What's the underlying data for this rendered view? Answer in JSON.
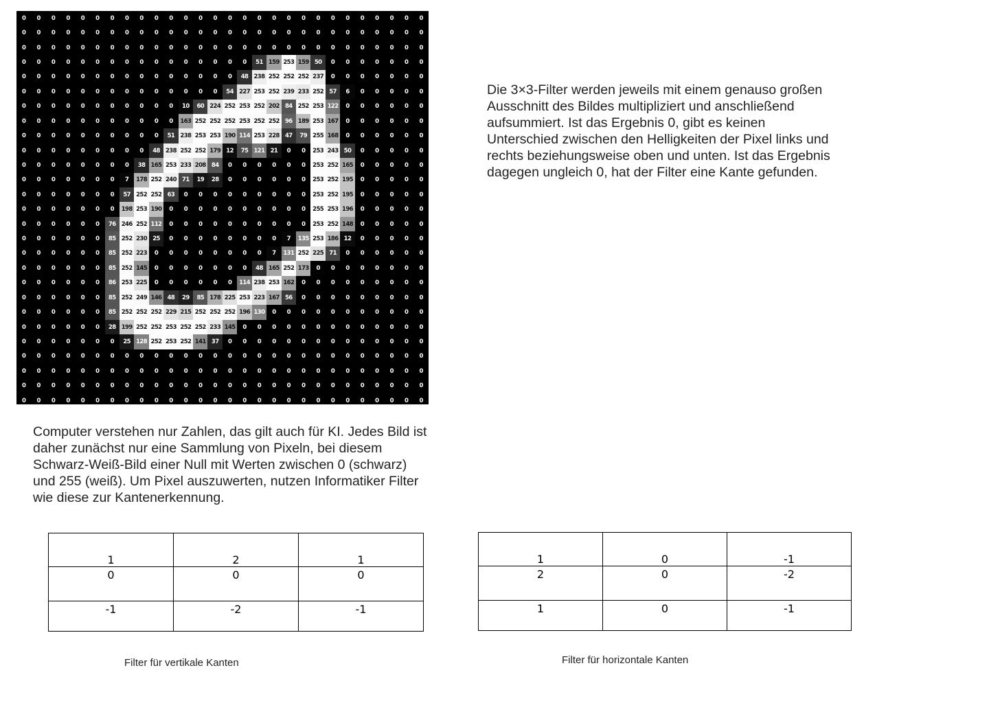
{
  "pixel_image": {
    "rows": [
      [
        0,
        0,
        0,
        0,
        0,
        0,
        0,
        0,
        0,
        0,
        0,
        0,
        0,
        0,
        0,
        0,
        0,
        0,
        0,
        0,
        0,
        0,
        0,
        0,
        0,
        0,
        0,
        0
      ],
      [
        0,
        0,
        0,
        0,
        0,
        0,
        0,
        0,
        0,
        0,
        0,
        0,
        0,
        0,
        0,
        0,
        0,
        0,
        0,
        0,
        0,
        0,
        0,
        0,
        0,
        0,
        0,
        0
      ],
      [
        0,
        0,
        0,
        0,
        0,
        0,
        0,
        0,
        0,
        0,
        0,
        0,
        0,
        0,
        0,
        0,
        0,
        0,
        0,
        0,
        0,
        0,
        0,
        0,
        0,
        0,
        0,
        0
      ],
      [
        0,
        0,
        0,
        0,
        0,
        0,
        0,
        0,
        0,
        0,
        0,
        0,
        0,
        0,
        0,
        0,
        51,
        159,
        253,
        159,
        50,
        0,
        0,
        0,
        0,
        0,
        0,
        0
      ],
      [
        0,
        0,
        0,
        0,
        0,
        0,
        0,
        0,
        0,
        0,
        0,
        0,
        0,
        0,
        0,
        48,
        238,
        252,
        252,
        252,
        237,
        0,
        0,
        0,
        0,
        0,
        0,
        0
      ],
      [
        0,
        0,
        0,
        0,
        0,
        0,
        0,
        0,
        0,
        0,
        0,
        0,
        0,
        0,
        54,
        227,
        253,
        252,
        239,
        233,
        252,
        57,
        6,
        0,
        0,
        0,
        0,
        0
      ],
      [
        0,
        0,
        0,
        0,
        0,
        0,
        0,
        0,
        0,
        0,
        0,
        10,
        60,
        224,
        252,
        253,
        252,
        202,
        84,
        252,
        253,
        122,
        0,
        0,
        0,
        0,
        0,
        0
      ],
      [
        0,
        0,
        0,
        0,
        0,
        0,
        0,
        0,
        0,
        0,
        0,
        163,
        252,
        252,
        252,
        253,
        252,
        252,
        96,
        189,
        253,
        167,
        0,
        0,
        0,
        0,
        0,
        0
      ],
      [
        0,
        0,
        0,
        0,
        0,
        0,
        0,
        0,
        0,
        0,
        51,
        238,
        253,
        253,
        190,
        114,
        253,
        228,
        47,
        79,
        255,
        168,
        0,
        0,
        0,
        0,
        0,
        0
      ],
      [
        0,
        0,
        0,
        0,
        0,
        0,
        0,
        0,
        0,
        48,
        238,
        252,
        252,
        179,
        12,
        75,
        121,
        21,
        0,
        0,
        253,
        243,
        50,
        0,
        0,
        0,
        0,
        0
      ],
      [
        0,
        0,
        0,
        0,
        0,
        0,
        0,
        0,
        38,
        165,
        253,
        233,
        208,
        84,
        0,
        0,
        0,
        0,
        0,
        0,
        253,
        252,
        165,
        0,
        0,
        0,
        0,
        0
      ],
      [
        0,
        0,
        0,
        0,
        0,
        0,
        0,
        7,
        178,
        252,
        240,
        71,
        19,
        28,
        0,
        0,
        0,
        0,
        0,
        0,
        253,
        252,
        195,
        0,
        0,
        0,
        0,
        0
      ],
      [
        0,
        0,
        0,
        0,
        0,
        0,
        0,
        57,
        252,
        252,
        63,
        0,
        0,
        0,
        0,
        0,
        0,
        0,
        0,
        0,
        253,
        252,
        195,
        0,
        0,
        0,
        0,
        0
      ],
      [
        0,
        0,
        0,
        0,
        0,
        0,
        0,
        198,
        253,
        190,
        0,
        0,
        0,
        0,
        0,
        0,
        0,
        0,
        0,
        0,
        255,
        253,
        196,
        0,
        0,
        0,
        0,
        0
      ],
      [
        0,
        0,
        0,
        0,
        0,
        0,
        76,
        246,
        252,
        112,
        0,
        0,
        0,
        0,
        0,
        0,
        0,
        0,
        0,
        0,
        253,
        252,
        148,
        0,
        0,
        0,
        0,
        0
      ],
      [
        0,
        0,
        0,
        0,
        0,
        0,
        85,
        252,
        230,
        25,
        0,
        0,
        0,
        0,
        0,
        0,
        0,
        0,
        7,
        135,
        253,
        186,
        12,
        0,
        0,
        0,
        0,
        0
      ],
      [
        0,
        0,
        0,
        0,
        0,
        0,
        85,
        252,
        223,
        0,
        0,
        0,
        0,
        0,
        0,
        0,
        0,
        7,
        131,
        252,
        225,
        71,
        0,
        0,
        0,
        0,
        0,
        0
      ],
      [
        0,
        0,
        0,
        0,
        0,
        0,
        85,
        252,
        145,
        0,
        0,
        0,
        0,
        0,
        0,
        0,
        48,
        165,
        252,
        173,
        0,
        0,
        0,
        0,
        0,
        0,
        0,
        0
      ],
      [
        0,
        0,
        0,
        0,
        0,
        0,
        86,
        253,
        225,
        0,
        0,
        0,
        0,
        0,
        0,
        114,
        238,
        253,
        162,
        0,
        0,
        0,
        0,
        0,
        0,
        0,
        0,
        0
      ],
      [
        0,
        0,
        0,
        0,
        0,
        0,
        85,
        252,
        249,
        146,
        48,
        29,
        85,
        178,
        225,
        253,
        223,
        167,
        56,
        0,
        0,
        0,
        0,
        0,
        0,
        0,
        0,
        0
      ],
      [
        0,
        0,
        0,
        0,
        0,
        0,
        85,
        252,
        252,
        252,
        229,
        215,
        252,
        252,
        252,
        196,
        130,
        0,
        0,
        0,
        0,
        0,
        0,
        0,
        0,
        0,
        0,
        0
      ],
      [
        0,
        0,
        0,
        0,
        0,
        0,
        28,
        199,
        252,
        252,
        253,
        252,
        252,
        233,
        145,
        0,
        0,
        0,
        0,
        0,
        0,
        0,
        0,
        0,
        0,
        0,
        0,
        0
      ],
      [
        0,
        0,
        0,
        0,
        0,
        0,
        0,
        25,
        128,
        252,
        253,
        252,
        141,
        37,
        0,
        0,
        0,
        0,
        0,
        0,
        0,
        0,
        0,
        0,
        0,
        0,
        0,
        0
      ],
      [
        0,
        0,
        0,
        0,
        0,
        0,
        0,
        0,
        0,
        0,
        0,
        0,
        0,
        0,
        0,
        0,
        0,
        0,
        0,
        0,
        0,
        0,
        0,
        0,
        0,
        0,
        0,
        0
      ],
      [
        0,
        0,
        0,
        0,
        0,
        0,
        0,
        0,
        0,
        0,
        0,
        0,
        0,
        0,
        0,
        0,
        0,
        0,
        0,
        0,
        0,
        0,
        0,
        0,
        0,
        0,
        0,
        0
      ],
      [
        0,
        0,
        0,
        0,
        0,
        0,
        0,
        0,
        0,
        0,
        0,
        0,
        0,
        0,
        0,
        0,
        0,
        0,
        0,
        0,
        0,
        0,
        0,
        0,
        0,
        0,
        0,
        0
      ],
      [
        0,
        0,
        0,
        0,
        0,
        0,
        0,
        0,
        0,
        0,
        0,
        0,
        0,
        0,
        0,
        0,
        0,
        0,
        0,
        0,
        0,
        0,
        0,
        0,
        0,
        0,
        0,
        0
      ],
      [
        0,
        0,
        0,
        0,
        0,
        0,
        0,
        0,
        0,
        0,
        0,
        0,
        0,
        0,
        0,
        0,
        0,
        0,
        0,
        0,
        0,
        0,
        0,
        0,
        0,
        0,
        0,
        0
      ]
    ]
  },
  "text_right": "Die 3×3-Filter werden jeweils mit einem genauso großen Ausschnitt des Bildes multipliziert und anschließend aufsummiert. Ist das Ergebnis 0, gibt es keinen Unterschied zwischen den Helligkeiten der Pixel links und rechts beziehungsweise oben und unten.  Ist das Ergebnis dagegen ungleich 0, hat der Filter eine Kante gefunden.",
  "text_left": "Computer verstehen nur Zahlen, das gilt auch für KI. Jedes Bild ist daher zunächst nur eine Sammlung von Pixeln, bei diesem Schwarz-Weiß-Bild einer Null mit Werten zwischen 0 (schwarz) und 255 (weiß). Um Pixel auszuwerten, nutzen Informatiker Filter wie diese zur Kantenerkennung.",
  "filter_vertical": {
    "rows": [
      [
        "1",
        "2",
        "1"
      ],
      [
        "0",
        "0",
        "0"
      ],
      [
        "-1",
        "-2",
        "-1"
      ]
    ],
    "caption": "Filter für vertikale Kanten"
  },
  "filter_horizontal": {
    "rows": [
      [
        "1",
        "0",
        "-1"
      ],
      [
        "2",
        "0",
        "-2"
      ],
      [
        "1",
        "0",
        "-1"
      ]
    ],
    "caption": "Filter für horizontale Kanten"
  }
}
